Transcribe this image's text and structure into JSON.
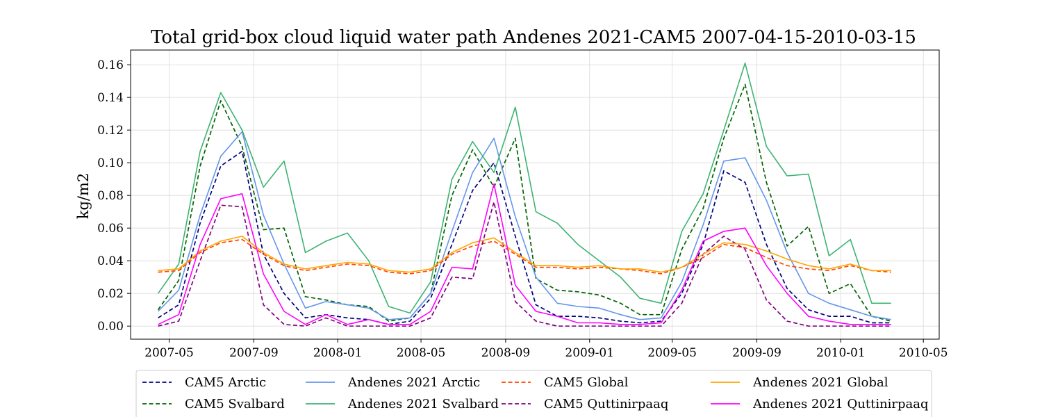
{
  "chart_data": {
    "type": "line",
    "title": "Total grid-box cloud liquid water path Andenes 2021-CAM5 2007-04-15-2010-03-15",
    "ylabel": "kg/m2",
    "xlabel": "",
    "ylim": [
      -0.008,
      0.169
    ],
    "xlim_dates": [
      "2007-03-06",
      "2010-05-24"
    ],
    "grid": true,
    "legend_position": "bottom",
    "y_ticks": [
      0.0,
      0.02,
      0.04,
      0.06,
      0.08,
      0.1,
      0.12,
      0.14,
      0.16
    ],
    "y_tick_labels": [
      "0.00",
      "0.02",
      "0.04",
      "0.06",
      "0.08",
      "0.10",
      "0.12",
      "0.14",
      "0.16"
    ],
    "x_ticks": [
      "2007-05-01",
      "2007-09-01",
      "2008-01-01",
      "2008-05-01",
      "2008-09-01",
      "2009-01-01",
      "2009-05-01",
      "2009-09-01",
      "2010-01-01",
      "2010-05-01"
    ],
    "x_tick_labels": [
      "2007-05",
      "2007-09",
      "2008-01",
      "2008-05",
      "2008-09",
      "2009-01",
      "2009-05",
      "2009-09",
      "2010-01",
      "2010-05"
    ],
    "x": [
      "2007-04-15",
      "2007-05-15",
      "2007-06-15",
      "2007-07-15",
      "2007-08-15",
      "2007-09-15",
      "2007-10-15",
      "2007-11-15",
      "2007-12-15",
      "2008-01-15",
      "2008-02-15",
      "2008-03-15",
      "2008-04-15",
      "2008-05-15",
      "2008-06-15",
      "2008-07-15",
      "2008-08-15",
      "2008-09-15",
      "2008-10-15",
      "2008-11-15",
      "2008-12-15",
      "2009-01-15",
      "2009-02-15",
      "2009-03-15",
      "2009-04-15",
      "2009-05-15",
      "2009-06-15",
      "2009-07-15",
      "2009-08-15",
      "2009-09-15",
      "2009-10-15",
      "2009-11-15",
      "2009-12-15",
      "2010-01-15",
      "2010-02-15",
      "2010-03-15"
    ],
    "series": [
      {
        "name": "CAM5 Arctic",
        "color": "#000080",
        "dash": true,
        "values": [
          0.005,
          0.013,
          0.063,
          0.098,
          0.107,
          0.044,
          0.02,
          0.005,
          0.007,
          0.005,
          0.004,
          0.001,
          0.003,
          0.017,
          0.05,
          0.083,
          0.1,
          0.055,
          0.013,
          0.006,
          0.006,
          0.005,
          0.003,
          0.002,
          0.003,
          0.02,
          0.05,
          0.095,
          0.088,
          0.05,
          0.023,
          0.01,
          0.006,
          0.006,
          0.002,
          0.002
        ]
      },
      {
        "name": "CAM5 Svalbard",
        "color": "#006400",
        "dash": true,
        "values": [
          0.01,
          0.028,
          0.098,
          0.138,
          0.11,
          0.059,
          0.06,
          0.018,
          0.016,
          0.013,
          0.012,
          0.003,
          0.005,
          0.02,
          0.08,
          0.108,
          0.085,
          0.115,
          0.029,
          0.022,
          0.021,
          0.019,
          0.014,
          0.007,
          0.007,
          0.047,
          0.072,
          0.115,
          0.148,
          0.088,
          0.049,
          0.061,
          0.02,
          0.026,
          0.006,
          0.003
        ]
      },
      {
        "name": "Andenes 2021 Arctic",
        "color": "#6495ED",
        "dash": false,
        "values": [
          0.009,
          0.022,
          0.068,
          0.104,
          0.119,
          0.068,
          0.038,
          0.011,
          0.015,
          0.013,
          0.011,
          0.004,
          0.005,
          0.02,
          0.058,
          0.094,
          0.115,
          0.067,
          0.03,
          0.014,
          0.012,
          0.011,
          0.007,
          0.004,
          0.005,
          0.027,
          0.062,
          0.101,
          0.103,
          0.077,
          0.045,
          0.02,
          0.014,
          0.01,
          0.006,
          0.004
        ]
      },
      {
        "name": "Andenes 2021 Svalbard",
        "color": "#3CB371",
        "dash": false,
        "values": [
          0.02,
          0.038,
          0.107,
          0.143,
          0.12,
          0.085,
          0.101,
          0.045,
          0.052,
          0.057,
          0.04,
          0.012,
          0.008,
          0.027,
          0.09,
          0.113,
          0.094,
          0.134,
          0.07,
          0.063,
          0.05,
          0.04,
          0.03,
          0.017,
          0.014,
          0.058,
          0.081,
          0.12,
          0.161,
          0.11,
          0.092,
          0.093,
          0.043,
          0.053,
          0.014,
          0.014
        ]
      },
      {
        "name": "CAM5 Global",
        "color": "#FF4500",
        "dash": true,
        "values": [
          0.033,
          0.034,
          0.045,
          0.051,
          0.053,
          0.044,
          0.037,
          0.034,
          0.036,
          0.038,
          0.037,
          0.033,
          0.032,
          0.034,
          0.044,
          0.049,
          0.052,
          0.044,
          0.036,
          0.036,
          0.035,
          0.036,
          0.035,
          0.034,
          0.032,
          0.036,
          0.042,
          0.05,
          0.048,
          0.042,
          0.037,
          0.035,
          0.034,
          0.037,
          0.034,
          0.033
        ]
      },
      {
        "name": "CAM5 Quttinirpaaq",
        "color": "#800080",
        "dash": true,
        "values": [
          0.0,
          0.003,
          0.04,
          0.074,
          0.073,
          0.013,
          0.001,
          0.0,
          0.005,
          0.0,
          0.0,
          0.0,
          0.0,
          0.005,
          0.03,
          0.029,
          0.076,
          0.015,
          0.003,
          0.0,
          0.0,
          0.0,
          0.0,
          0.0,
          0.0,
          0.014,
          0.044,
          0.055,
          0.047,
          0.016,
          0.003,
          0.0,
          0.0,
          0.0,
          0.0,
          0.0
        ]
      },
      {
        "name": "Andenes 2021 Global",
        "color": "#FFA500",
        "dash": false,
        "values": [
          0.034,
          0.035,
          0.046,
          0.052,
          0.055,
          0.045,
          0.038,
          0.035,
          0.037,
          0.039,
          0.038,
          0.034,
          0.033,
          0.035,
          0.045,
          0.051,
          0.054,
          0.045,
          0.037,
          0.037,
          0.036,
          0.037,
          0.035,
          0.035,
          0.033,
          0.036,
          0.044,
          0.051,
          0.05,
          0.046,
          0.041,
          0.037,
          0.035,
          0.038,
          0.034,
          0.034
        ]
      },
      {
        "name": "Andenes 2021 Quttinirpaaq",
        "color": "#FF00FF",
        "dash": false,
        "values": [
          0.001,
          0.007,
          0.05,
          0.078,
          0.081,
          0.032,
          0.009,
          0.001,
          0.007,
          0.001,
          0.004,
          0.001,
          0.001,
          0.009,
          0.036,
          0.035,
          0.087,
          0.025,
          0.009,
          0.006,
          0.002,
          0.002,
          0.001,
          0.001,
          0.002,
          0.022,
          0.052,
          0.058,
          0.06,
          0.037,
          0.02,
          0.006,
          0.003,
          0.001,
          0.001,
          0.001
        ]
      }
    ]
  }
}
